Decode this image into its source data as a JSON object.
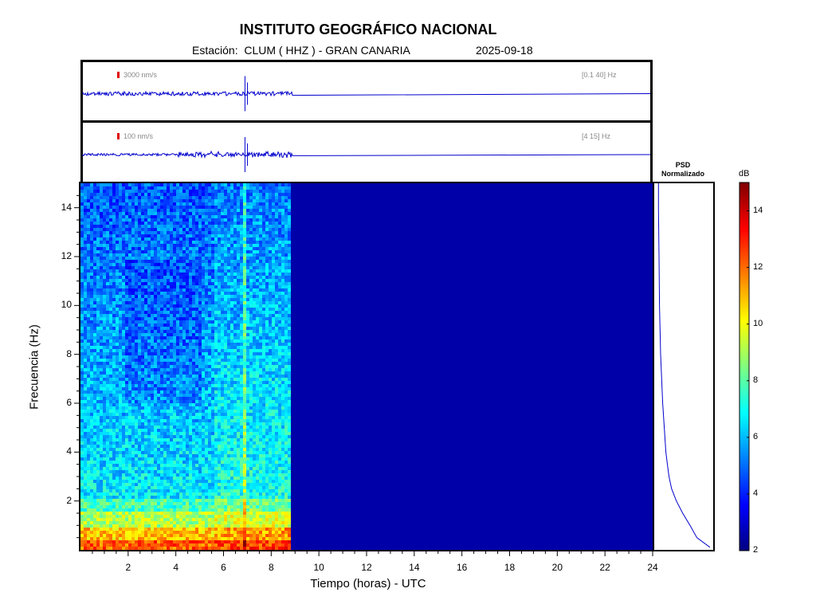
{
  "header": {
    "title": "INSTITUTO GEOGRÁFICO NACIONAL",
    "station": "Estación:  CLUM ( HHZ ) - GRAN CANARIA",
    "date": "2025-09-18"
  },
  "traces": [
    {
      "scale": "3000 nm/s",
      "band": "[0.1 40] Hz"
    },
    {
      "scale": "100 nm/s",
      "band": "[4 15] Hz"
    }
  ],
  "chart_data": {
    "type": "heatmap",
    "xlabel": "Tiempo (horas) - UTC",
    "ylabel": "Frecuencia  (Hz)",
    "xlim": [
      0,
      24
    ],
    "ylim": [
      0,
      15
    ],
    "xticks": [
      2,
      4,
      6,
      8,
      10,
      12,
      14,
      16,
      18,
      20,
      22,
      24
    ],
    "yticks": [
      2,
      4,
      6,
      8,
      10,
      12,
      14
    ],
    "data_end_hour": 8.8,
    "event_hour": 6.8,
    "colorbar": {
      "label": "dB",
      "range": [
        2,
        15
      ],
      "ticks": [
        2,
        4,
        6,
        8,
        10,
        12,
        14
      ]
    },
    "psd": {
      "title_line1": "PSD",
      "title_line2": "Normalizado",
      "freq_hz": [
        0.1,
        0.5,
        1.0,
        1.5,
        2.0,
        2.5,
        3.0,
        3.5,
        4.0,
        5.0,
        6.0,
        7.0,
        8.0,
        9.0,
        10.0,
        12.0,
        14.0,
        15.0
      ],
      "value": [
        1.0,
        0.75,
        0.62,
        0.48,
        0.36,
        0.27,
        0.22,
        0.19,
        0.16,
        0.13,
        0.1,
        0.08,
        0.06,
        0.05,
        0.04,
        0.03,
        0.02,
        0.02
      ]
    }
  }
}
